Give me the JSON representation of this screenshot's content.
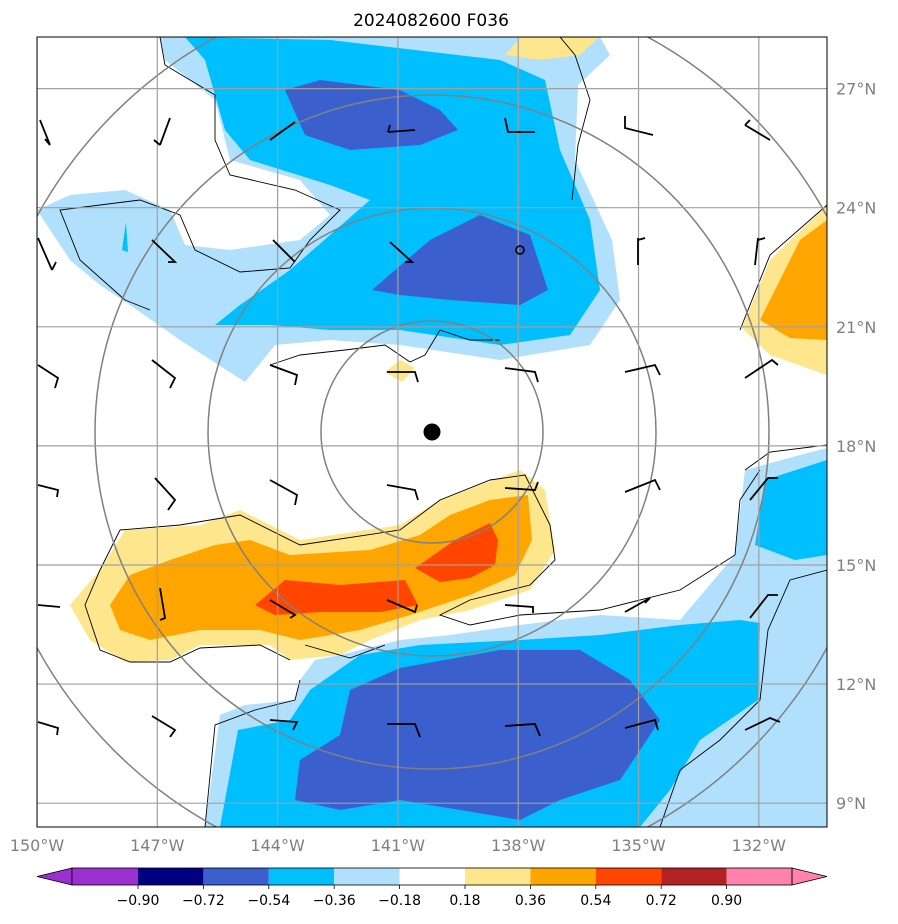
{
  "chart_data": {
    "type": "heatmap",
    "title": "2024082600 F036",
    "x_ticks": [
      "150°W",
      "147°W",
      "144°W",
      "141°W",
      "138°W",
      "135°W",
      "132°W"
    ],
    "x_tick_values": [
      -150,
      -147,
      -144,
      -141,
      -138,
      -135,
      -132
    ],
    "y_ticks": [
      "27°N",
      "24°N",
      "21°N",
      "18°N",
      "15°N",
      "12°N",
      "9°N"
    ],
    "y_tick_values": [
      27,
      24,
      21,
      18,
      15,
      12,
      9
    ],
    "xlim": [
      -150,
      -130.3
    ],
    "ylim": [
      8.4,
      28.3
    ],
    "grid": true,
    "colorbar": {
      "labels": [
        "−0.90",
        "−0.72",
        "−0.54",
        "−0.36",
        "−0.18",
        "0.18",
        "0.36",
        "0.54",
        "0.72",
        "0.90"
      ],
      "levels": [
        -0.9,
        -0.72,
        -0.54,
        -0.36,
        -0.18,
        0.18,
        0.36,
        0.54,
        0.72,
        0.9
      ],
      "colors": [
        "#9b30d0",
        "#000080",
        "#3b5fcd",
        "#00bfff",
        "#b0e0fb",
        "#ffffff",
        "#fde68c",
        "#ffa500",
        "#ff4500",
        "#b22222",
        "#ff82ab"
      ],
      "extend": "both"
    },
    "center_marker": {
      "lon": -140.7,
      "lat": 18.4
    },
    "small_marker": {
      "lon": -138.0,
      "lat": 22.95
    },
    "range_circle_radii_deg": [
      2.8,
      5.6,
      8.4,
      11.2
    ]
  }
}
